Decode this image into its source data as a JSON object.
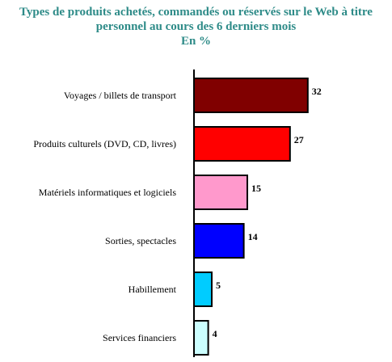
{
  "chart_data": {
    "type": "bar",
    "orientation": "horizontal",
    "title": "Types de produits achetés, commandés ou réservés sur le Web à titre",
    "title_line2": "personnel au cours des 6 derniers mois",
    "subtitle": "En %",
    "categories": [
      "Voyages / billets de transport",
      "Produits culturels (DVD, CD, livres)",
      "Matériels informatiques et logiciels",
      "Sorties, spectacles",
      "Habillement",
      "Services financiers"
    ],
    "values": [
      32,
      27,
      15,
      14,
      5,
      4
    ],
    "colors": [
      "#800000",
      "#ff0000",
      "#ff99cc",
      "#0000ff",
      "#00ccff",
      "#ccffff"
    ],
    "xlim": [
      0,
      35
    ],
    "grid": false,
    "legend": "none",
    "title_color": "#2e8b88"
  }
}
